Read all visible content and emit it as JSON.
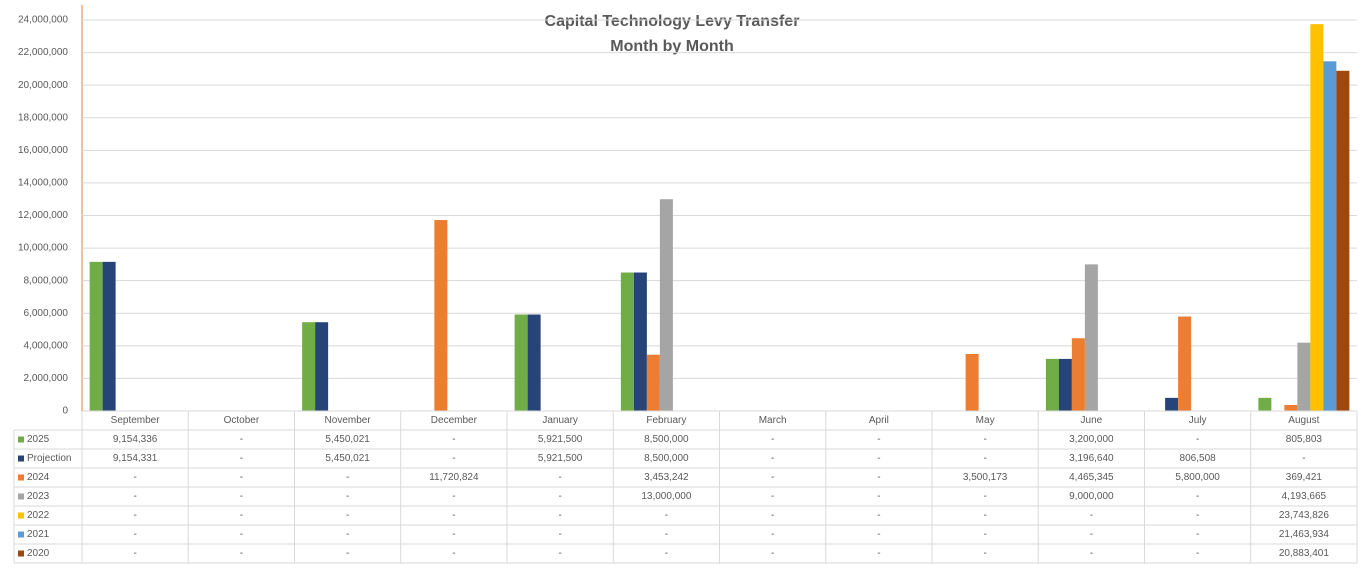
{
  "chart_data": {
    "type": "bar",
    "title": "Capital Technology Levy Transfer",
    "subtitle": "Month by Month",
    "categories": [
      "September",
      "October",
      "November",
      "December",
      "January",
      "February",
      "March",
      "April",
      "May",
      "June",
      "July",
      "August"
    ],
    "ylim": [
      0,
      24000000
    ],
    "yticks": [
      {
        "value": 0,
        "label": "0"
      },
      {
        "value": 2000000,
        "label": "2,000,000"
      },
      {
        "value": 4000000,
        "label": "4,000,000"
      },
      {
        "value": 6000000,
        "label": "6,000,000"
      },
      {
        "value": 8000000,
        "label": "8,000,000"
      },
      {
        "value": 10000000,
        "label": "10,000,000"
      },
      {
        "value": 12000000,
        "label": "12,000,000"
      },
      {
        "value": 14000000,
        "label": "14,000,000"
      },
      {
        "value": 16000000,
        "label": "16,000,000"
      },
      {
        "value": 18000000,
        "label": "18,000,000"
      },
      {
        "value": 20000000,
        "label": "20,000,000"
      },
      {
        "value": 22000000,
        "label": "22,000,000"
      },
      {
        "value": 24000000,
        "label": "24,000,000"
      }
    ],
    "grid": true,
    "data_table": true,
    "series": [
      {
        "name": "2025",
        "color": "#70ad47",
        "values": [
          9154336,
          null,
          5450021,
          null,
          5921500,
          8500000,
          null,
          null,
          null,
          3200000,
          null,
          805803
        ],
        "value_labels": [
          "9,154,336",
          "-",
          "5,450,021",
          "-",
          "5,921,500",
          "8,500,000",
          "-",
          "-",
          "-",
          "3,200,000",
          "-",
          "805,803"
        ]
      },
      {
        "name": "Projection",
        "color": "#264478",
        "values": [
          9154331,
          null,
          5450021,
          null,
          5921500,
          8500000,
          null,
          null,
          null,
          3196640,
          806508,
          null
        ],
        "value_labels": [
          "9,154,331",
          "-",
          "5,450,021",
          "-",
          "5,921,500",
          "8,500,000",
          "-",
          "-",
          "-",
          "3,196,640",
          "806,508",
          "-"
        ]
      },
      {
        "name": "2024",
        "color": "#ed7d31",
        "values": [
          null,
          null,
          null,
          11720824,
          null,
          3453242,
          null,
          null,
          3500173,
          4465345,
          5800000,
          369421
        ],
        "value_labels": [
          "-",
          "-",
          "-",
          "11,720,824",
          "-",
          "3,453,242",
          "-",
          "-",
          "3,500,173",
          "4,465,345",
          "5,800,000",
          "369,421"
        ]
      },
      {
        "name": "2023",
        "color": "#a5a5a5",
        "values": [
          null,
          null,
          null,
          null,
          null,
          13000000,
          null,
          null,
          null,
          9000000,
          null,
          4193665
        ],
        "value_labels": [
          "-",
          "-",
          "-",
          "-",
          "-",
          "13,000,000",
          "-",
          "-",
          "-",
          "9,000,000",
          "-",
          "4,193,665"
        ]
      },
      {
        "name": "2022",
        "color": "#ffc000",
        "values": [
          null,
          null,
          null,
          null,
          null,
          null,
          null,
          null,
          null,
          null,
          null,
          23743826
        ],
        "value_labels": [
          "-",
          "-",
          "-",
          "-",
          "-",
          "-",
          "-",
          "-",
          "-",
          "-",
          "-",
          "23,743,826"
        ]
      },
      {
        "name": "2021",
        "color": "#5b9bd5",
        "values": [
          null,
          null,
          null,
          null,
          null,
          null,
          null,
          null,
          null,
          null,
          null,
          21463934
        ],
        "value_labels": [
          "-",
          "-",
          "-",
          "-",
          "-",
          "-",
          "-",
          "-",
          "-",
          "-",
          "-",
          "21,463,934"
        ]
      },
      {
        "name": "2020",
        "color": "#9e480e",
        "values": [
          null,
          null,
          null,
          null,
          null,
          null,
          null,
          null,
          null,
          null,
          null,
          20883401
        ],
        "value_labels": [
          "-",
          "-",
          "-",
          "-",
          "-",
          "-",
          "-",
          "-",
          "-",
          "-",
          "-",
          "20,883,401"
        ]
      }
    ]
  }
}
